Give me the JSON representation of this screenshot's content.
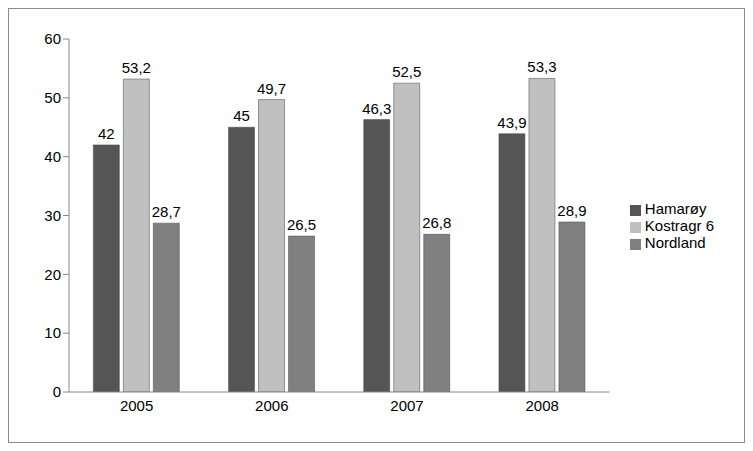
{
  "chart_data": {
    "type": "bar",
    "categories": [
      "2005",
      "2006",
      "2007",
      "2008"
    ],
    "series": [
      {
        "name": "Hamarøy",
        "color": "#555555",
        "values": [
          42,
          45,
          46.3,
          43.9
        ],
        "value_labels": [
          "42",
          "45",
          "46,3",
          "43,9"
        ]
      },
      {
        "name": "Kostragr 6",
        "color": "#c0c0c0",
        "values": [
          53.2,
          49.7,
          52.5,
          53.3
        ],
        "value_labels": [
          "53,2",
          "49,7",
          "52,5",
          "53,3"
        ]
      },
      {
        "name": "Nordland",
        "color": "#808080",
        "values": [
          28.7,
          26.5,
          26.8,
          28.9
        ],
        "value_labels": [
          "28,7",
          "26,5",
          "26,8",
          "28,9"
        ]
      }
    ],
    "ylim": [
      0,
      60
    ],
    "yticks": [
      0,
      10,
      20,
      30,
      40,
      50,
      60
    ],
    "grid": false,
    "legend": "right",
    "data_labels": true
  }
}
